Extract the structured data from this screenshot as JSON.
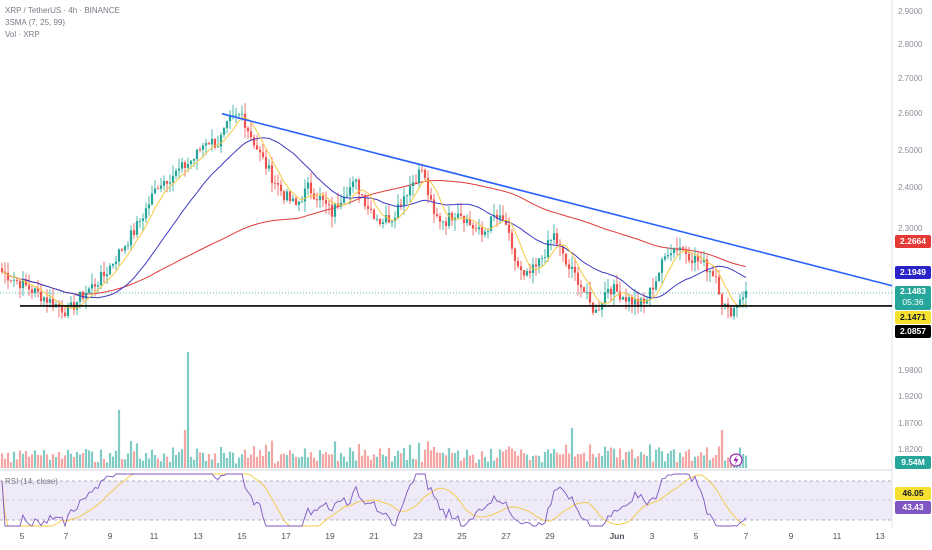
{
  "header": {
    "symbol": "XRP / TetherUS · 4h · BINANCE",
    "sma": "3SMA (7, 25, 99)",
    "vol": "Vol · XRP",
    "rsi": "RSI (14, close)"
  },
  "colors": {
    "up": "#26a69a",
    "down": "#ef5350",
    "trendline": "#2962ff",
    "sma7": "#f5c842",
    "sma25": "#3c3cbf",
    "sma99": "#e03a3a",
    "support": "#000000",
    "rsi_line": "#7e57c2",
    "rsi_ma": "#f5c842"
  },
  "chart_data": {
    "type": "candlestick",
    "title": "XRP / TetherUS · 4h · BINANCE",
    "y_ticks": [
      "2.9000",
      "2.8000",
      "2.7000",
      "2.6000",
      "2.5000",
      "2.4000",
      "2.3000",
      "1.9800",
      "1.9200",
      "1.8700",
      "1.8200"
    ],
    "x_ticks": [
      "5",
      "7",
      "9",
      "11",
      "13",
      "15",
      "17",
      "19",
      "21",
      "23",
      "25",
      "27",
      "29",
      "Jun",
      "3",
      "5",
      "7",
      "9",
      "11",
      "13"
    ],
    "price_labels": {
      "sma99": "2.2664",
      "sma25": "2.1949",
      "last": "2.1483",
      "countdown": "05:36",
      "sma7": "2.1471",
      "support": "2.0857"
    },
    "volume_label": "9.54M",
    "rsi_values": {
      "ma": "46.05",
      "rsi": "43.43"
    },
    "close_path": [
      [
        0,
        2.2
      ],
      [
        6,
        2.17
      ],
      [
        12,
        2.14
      ],
      [
        18,
        2.11
      ],
      [
        22,
        2.09
      ],
      [
        26,
        2.13
      ],
      [
        30,
        2.16
      ],
      [
        34,
        2.19
      ],
      [
        38,
        2.24
      ],
      [
        44,
        2.31
      ],
      [
        48,
        2.37
      ],
      [
        52,
        2.44
      ],
      [
        58,
        2.47
      ],
      [
        64,
        2.51
      ],
      [
        68,
        2.56
      ],
      [
        72,
        2.55
      ],
      [
        76,
        2.61
      ],
      [
        80,
        2.63
      ],
      [
        82,
        2.59
      ],
      [
        86,
        2.52
      ],
      [
        90,
        2.46
      ],
      [
        94,
        2.41
      ],
      [
        98,
        2.38
      ],
      [
        102,
        2.43
      ],
      [
        106,
        2.4
      ],
      [
        110,
        2.36
      ],
      [
        114,
        2.42
      ],
      [
        118,
        2.44
      ],
      [
        122,
        2.38
      ],
      [
        126,
        2.34
      ],
      [
        130,
        2.35
      ],
      [
        134,
        2.41
      ],
      [
        138,
        2.46
      ],
      [
        140,
        2.48
      ],
      [
        144,
        2.35
      ],
      [
        148,
        2.34
      ],
      [
        152,
        2.37
      ],
      [
        156,
        2.33
      ],
      [
        160,
        2.3
      ],
      [
        164,
        2.35
      ],
      [
        168,
        2.33
      ],
      [
        170,
        2.25
      ],
      [
        174,
        2.18
      ],
      [
        178,
        2.21
      ],
      [
        182,
        2.27
      ],
      [
        184,
        2.3
      ],
      [
        188,
        2.22
      ],
      [
        192,
        2.18
      ],
      [
        196,
        2.11
      ],
      [
        198,
        2.09
      ],
      [
        202,
        2.16
      ],
      [
        206,
        2.14
      ],
      [
        210,
        2.12
      ],
      [
        214,
        2.11
      ],
      [
        218,
        2.18
      ],
      [
        222,
        2.26
      ],
      [
        226,
        2.27
      ],
      [
        230,
        2.24
      ],
      [
        234,
        2.22
      ],
      [
        238,
        2.19
      ],
      [
        240,
        2.12
      ],
      [
        242,
        2.09
      ],
      [
        244,
        2.1
      ],
      [
        246,
        2.13
      ],
      [
        248,
        2.148
      ]
    ],
    "trendline": {
      "start": [
        2,
        2.632
      ],
      "end": [
        297,
        2.162
      ]
    },
    "support_level": 2.085,
    "series": [
      {
        "name": "SMA 7"
      },
      {
        "name": "SMA 25"
      },
      {
        "name": "SMA 99"
      }
    ]
  }
}
